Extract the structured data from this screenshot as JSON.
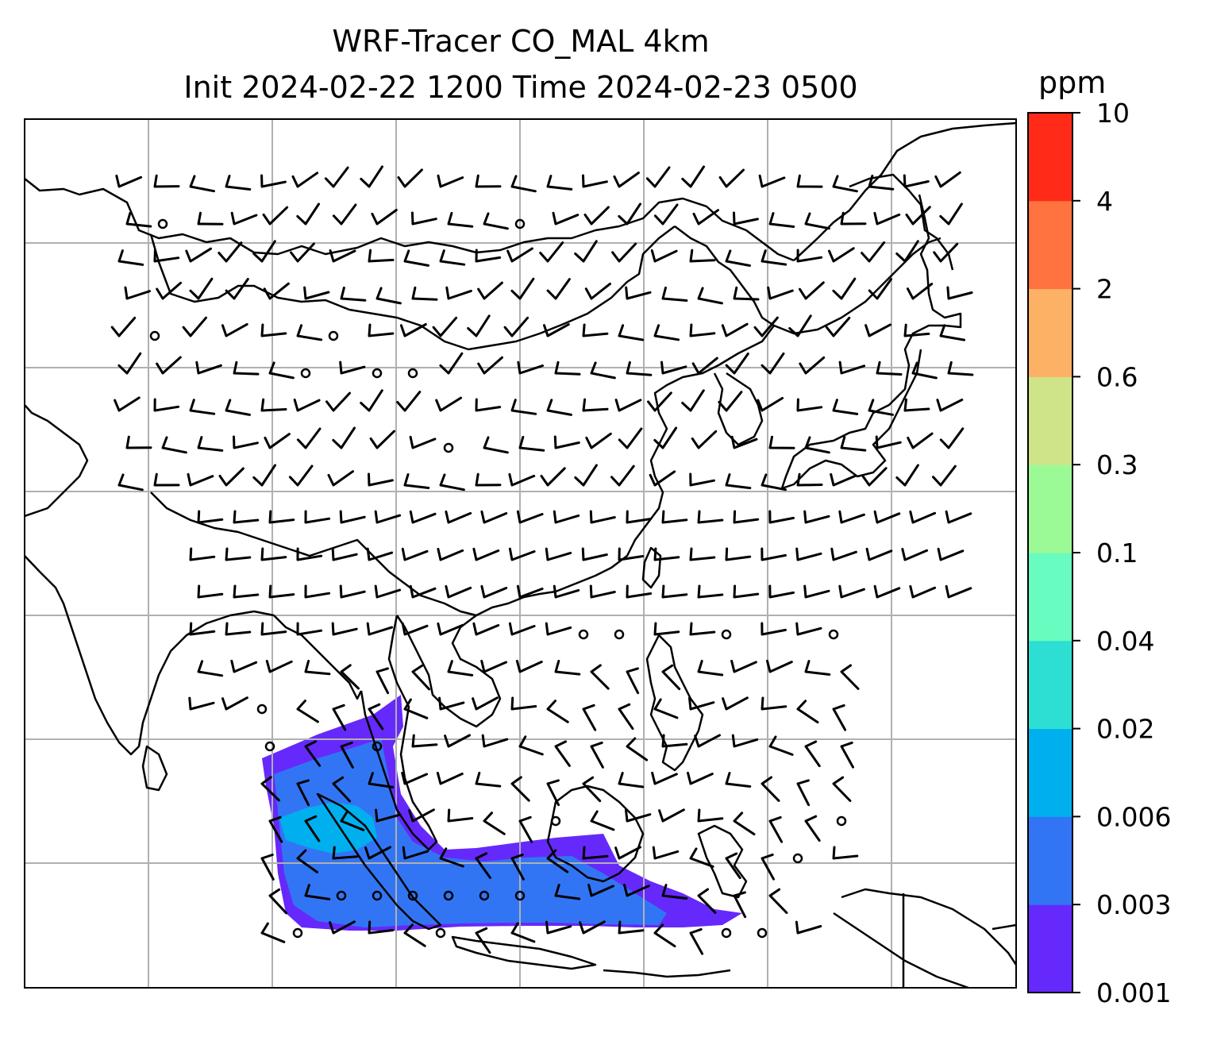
{
  "title": {
    "line1": "WRF-Tracer CO_MAL 4km",
    "line2": "Init 2024-02-22 1200 Time 2024-02-23 0500"
  },
  "colorbar": {
    "unit": "ppm",
    "levels": [
      "0.001",
      "0.003",
      "0.006",
      "0.02",
      "0.04",
      "0.1",
      "0.3",
      "0.6",
      "2",
      "4",
      "10"
    ],
    "colors": [
      "#6629fb",
      "#3275f4",
      "#00b0ee",
      "#2ddfd2",
      "#68fcc0",
      "#9cfa96",
      "#cfe489",
      "#fdb165",
      "#ff7340",
      "#ff2b18"
    ]
  },
  "map": {
    "gridline_color": "#b0b0b0",
    "coastline_color": "#000000",
    "plume_colors": {
      "low": "#6629fb",
      "mid": "#3275f4",
      "high": "#00b0ee"
    }
  }
}
